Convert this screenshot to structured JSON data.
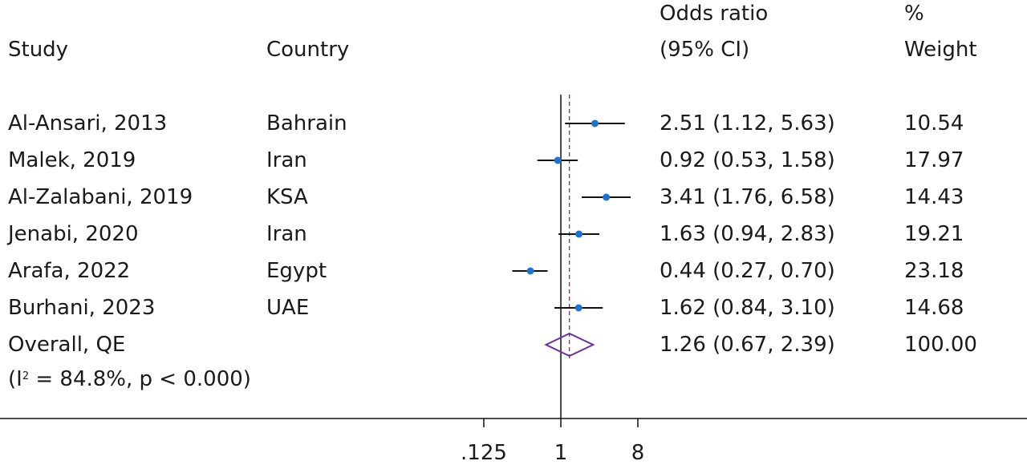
{
  "headers": {
    "study": "Study",
    "country": "Country",
    "or_line1": "Odds ratio",
    "or_line2": "(95% CI)",
    "weight_line1": "%",
    "weight_line2": "Weight"
  },
  "rows": [
    {
      "study": "Al-Ansari, 2013",
      "country": "Bahrain",
      "or_text": "2.51 (1.12, 5.63)",
      "weight": "10.54"
    },
    {
      "study": "Malek, 2019",
      "country": "Iran",
      "or_text": "0.92 (0.53, 1.58)",
      "weight": "17.97"
    },
    {
      "study": "Al-Zalabani, 2019",
      "country": "KSA",
      "or_text": "3.41 (1.76, 6.58)",
      "weight": "14.43"
    },
    {
      "study": "Jenabi, 2020",
      "country": "Iran",
      "or_text": "1.63 (0.94, 2.83)",
      "weight": "19.21"
    },
    {
      "study": "Arafa, 2022",
      "country": "Egypt",
      "or_text": "0.44 (0.27, 0.70)",
      "weight": "23.18"
    },
    {
      "study": "Burhani, 2023",
      "country": "UAE",
      "or_text": "1.62 (0.84, 3.10)",
      "weight": "14.68"
    }
  ],
  "overall": {
    "label": "Overall, QE",
    "or_text": "1.26 (0.67, 2.39)",
    "weight": "100.00",
    "het_prefix": "(I",
    "het_sup": "2",
    "het_suffix": " = 84.8%, p < 0.000)"
  },
  "colors": {
    "point": "#1e73d2",
    "ci_line": "#111111",
    "overall_diamond": "#6b2fa5",
    "overall_line": "#b0204a",
    "axis": "#111111"
  },
  "chart_data": {
    "type": "forest",
    "x_scale": "log",
    "x_ticks": [
      0.125,
      1,
      8
    ],
    "x_tick_labels": [
      ".125",
      "1",
      "8"
    ],
    "null_line": 1,
    "studies": [
      {
        "name": "Al-Ansari, 2013",
        "or": 2.51,
        "lo": 1.12,
        "hi": 5.63,
        "weight": 10.54
      },
      {
        "name": "Malek, 2019",
        "or": 0.92,
        "lo": 0.53,
        "hi": 1.58,
        "weight": 17.97
      },
      {
        "name": "Al-Zalabani, 2019",
        "or": 3.41,
        "lo": 1.76,
        "hi": 6.58,
        "weight": 14.43
      },
      {
        "name": "Jenabi, 2020",
        "or": 1.63,
        "lo": 0.94,
        "hi": 2.83,
        "weight": 19.21
      },
      {
        "name": "Arafa, 2022",
        "or": 0.44,
        "lo": 0.27,
        "hi": 0.7,
        "weight": 23.18
      },
      {
        "name": "Burhani, 2023",
        "or": 1.62,
        "lo": 0.84,
        "hi": 3.1,
        "weight": 14.68
      }
    ],
    "overall": {
      "or": 1.26,
      "lo": 0.67,
      "hi": 2.39,
      "weight": 100.0
    }
  }
}
